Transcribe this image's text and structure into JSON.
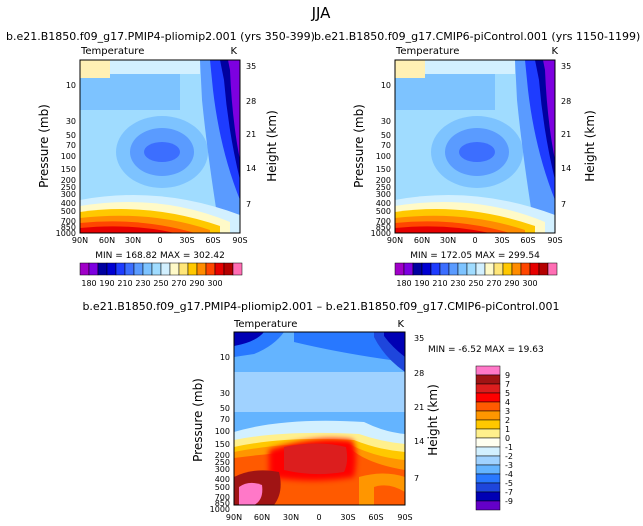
{
  "page_title": "JJA",
  "chart_data": [
    {
      "type": "heatmap",
      "title": "b.e21.B1850.f09_g17.PMIP4-pliomip2.001 (yrs 350-399)",
      "subtitle_left": "Temperature",
      "subtitle_right": "K",
      "ylabel": "Pressure (mb)",
      "ylabel_right": "Height (km)",
      "x_ticks": [
        "90N",
        "60N",
        "30N",
        "0",
        "30S",
        "60S",
        "90S"
      ],
      "y_ticks": [
        "10",
        "30",
        "50",
        "70",
        "100",
        "150",
        "200",
        "250",
        "300",
        "400",
        "500",
        "700",
        "850",
        "1000"
      ],
      "y_right_ticks": [
        "35",
        "28",
        "21",
        "14",
        "7"
      ],
      "min_max": "MIN = 168.82   MAX = 302.42",
      "contour_levels": [
        "180",
        "190",
        "210",
        "230",
        "250",
        "270",
        "290",
        "300"
      ],
      "colors": [
        "#a000c8",
        "#7d00e0",
        "#0000a0",
        "#0000d2",
        "#1e3cff",
        "#3c6eff",
        "#5a9bff",
        "#7dc3ff",
        "#a0dcff",
        "#d2f0ff",
        "#fffac8",
        "#ffe678",
        "#ffc800",
        "#ff8c00",
        "#ff4600",
        "#e60000",
        "#b40000",
        "#ff6eb4"
      ]
    },
    {
      "type": "heatmap",
      "title": "b.e21.B1850.f09_g17.CMIP6-piControl.001 (yrs 1150-1199)",
      "subtitle_left": "Temperature",
      "subtitle_right": "K",
      "ylabel": "Pressure (mb)",
      "ylabel_right": "Height (km)",
      "x_ticks": [
        "90N",
        "60N",
        "30N",
        "0",
        "30S",
        "60S",
        "90S"
      ],
      "y_ticks": [
        "10",
        "30",
        "50",
        "70",
        "100",
        "150",
        "200",
        "250",
        "300",
        "400",
        "500",
        "700",
        "850",
        "1000"
      ],
      "y_right_ticks": [
        "35",
        "28",
        "21",
        "14",
        "7"
      ],
      "min_max": "MIN = 172.05   MAX = 299.54",
      "contour_levels": [
        "180",
        "190",
        "210",
        "230",
        "250",
        "270",
        "290",
        "300"
      ]
    },
    {
      "type": "heatmap",
      "title": "b.e21.B1850.f09_g17.PMIP4-pliomip2.001 – b.e21.B1850.f09_g17.CMIP6-piControl.001",
      "subtitle_left": "Temperature",
      "subtitle_right": "K",
      "ylabel": "Pressure (mb)",
      "ylabel_right": "Height (km)",
      "x_ticks": [
        "90N",
        "60N",
        "30N",
        "0",
        "30S",
        "60S",
        "90S"
      ],
      "y_ticks": [
        "10",
        "30",
        "50",
        "70",
        "100",
        "150",
        "200",
        "250",
        "300",
        "400",
        "500",
        "700",
        "850",
        "1000"
      ],
      "y_right_ticks": [
        "35",
        "28",
        "21",
        "14",
        "7"
      ],
      "min_max": "MIN =  -6.52   MAX =  19.63",
      "contour_levels": [
        "9",
        "7",
        "5",
        "4",
        "3",
        "2",
        "1",
        "0",
        "-1",
        "-2",
        "-3",
        "-4",
        "-5",
        "-7",
        "-9"
      ],
      "colors": [
        "#ff78c8",
        "#a01414",
        "#dc1e1e",
        "#ff0000",
        "#ff5a00",
        "#ff9600",
        "#ffc800",
        "#fff08c",
        "#fffff0",
        "#d2f0ff",
        "#a0d2ff",
        "#64b4ff",
        "#2878ff",
        "#1e46dc",
        "#0000b4",
        "#6400c8"
      ]
    }
  ]
}
